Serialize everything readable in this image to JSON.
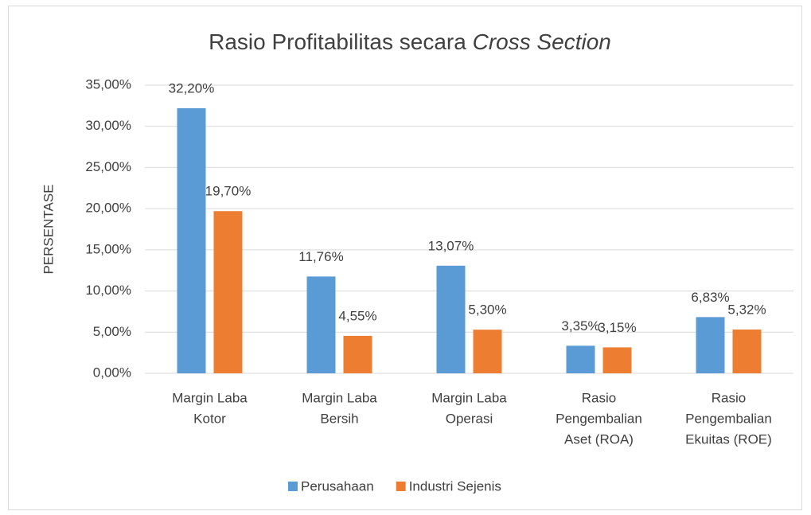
{
  "chart_data": {
    "type": "bar",
    "title": [
      "Rasio Profitabilitas secara ",
      "Cross Section"
    ],
    "y_label": "PERSENTASE",
    "categories": [
      [
        "Margin Laba",
        "Kotor"
      ],
      [
        "Margin Laba",
        "Bersih"
      ],
      [
        "Margin Laba",
        "Operasi"
      ],
      [
        "Rasio",
        "Pengembalian",
        "Aset (ROA)"
      ],
      [
        "Rasio",
        "Pengembalian",
        "Ekuitas (ROE)"
      ]
    ],
    "series": [
      {
        "name": "Perusahaan",
        "color": "#5b9bd5",
        "values": [
          32.2,
          11.76,
          13.07,
          3.35,
          6.83
        ],
        "value_labels": [
          "32,20%",
          "11,76%",
          "13,07%",
          "3,35%",
          "6,83%"
        ]
      },
      {
        "name": "Industri Sejenis",
        "color": "#ed7d31",
        "values": [
          19.7,
          4.55,
          5.3,
          3.15,
          5.32
        ],
        "value_labels": [
          "19,70%",
          "4,55%",
          "5,30%",
          "3,15%",
          "5,32%"
        ]
      }
    ],
    "ylim": [
      0,
      35
    ],
    "yticks": [
      {
        "value": 0,
        "label": "0,00%"
      },
      {
        "value": 5,
        "label": "5,00%"
      },
      {
        "value": 10,
        "label": "10,00%"
      },
      {
        "value": 15,
        "label": "15,00%"
      },
      {
        "value": 20,
        "label": "20,00%"
      },
      {
        "value": 25,
        "label": "25,00%"
      },
      {
        "value": 30,
        "label": "30,00%"
      },
      {
        "value": 35,
        "label": "35,00%"
      }
    ],
    "grid": true,
    "legend": "bottom"
  }
}
